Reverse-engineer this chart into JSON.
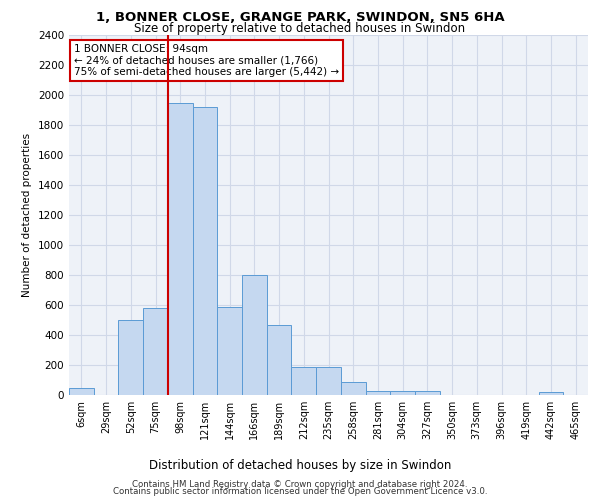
{
  "title_line1": "1, BONNER CLOSE, GRANGE PARK, SWINDON, SN5 6HA",
  "title_line2": "Size of property relative to detached houses in Swindon",
  "xlabel": "Distribution of detached houses by size in Swindon",
  "ylabel": "Number of detached properties",
  "categories": [
    "6sqm",
    "29sqm",
    "52sqm",
    "75sqm",
    "98sqm",
    "121sqm",
    "144sqm",
    "166sqm",
    "189sqm",
    "212sqm",
    "235sqm",
    "258sqm",
    "281sqm",
    "304sqm",
    "327sqm",
    "350sqm",
    "373sqm",
    "396sqm",
    "419sqm",
    "442sqm",
    "465sqm"
  ],
  "values": [
    50,
    0,
    500,
    580,
    1950,
    1920,
    590,
    800,
    470,
    190,
    190,
    85,
    30,
    25,
    25,
    0,
    0,
    0,
    0,
    20,
    0
  ],
  "bar_color": "#c5d8f0",
  "bar_edge_color": "#5b9bd5",
  "redline_index": 4,
  "annotation_title": "1 BONNER CLOSE: 94sqm",
  "annotation_line2": "← 24% of detached houses are smaller (1,766)",
  "annotation_line3": "75% of semi-detached houses are larger (5,442) →",
  "annotation_box_color": "#ffffff",
  "annotation_box_edge": "#cc0000",
  "redline_color": "#cc0000",
  "ylim": [
    0,
    2400
  ],
  "yticks": [
    0,
    200,
    400,
    600,
    800,
    1000,
    1200,
    1400,
    1600,
    1800,
    2000,
    2200,
    2400
  ],
  "footer_line1": "Contains HM Land Registry data © Crown copyright and database right 2024.",
  "footer_line2": "Contains public sector information licensed under the Open Government Licence v3.0.",
  "grid_color": "#d0d8e8",
  "background_color": "#eef2f8"
}
